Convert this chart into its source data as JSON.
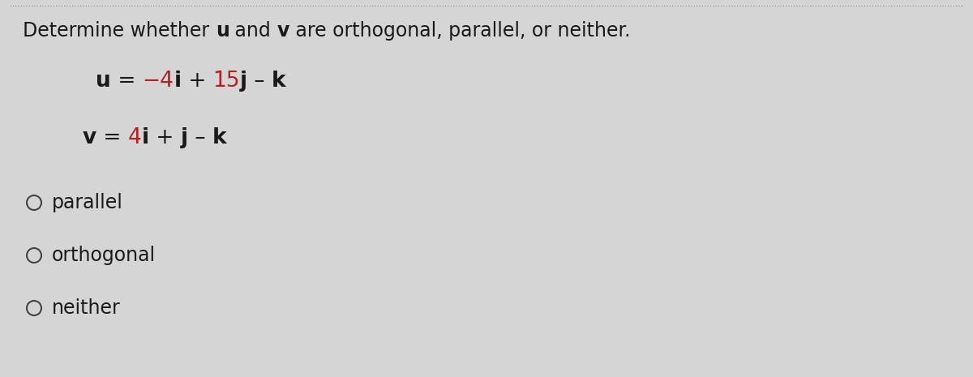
{
  "background_color": "#d5d5d5",
  "title_parts": [
    {
      "text": "Determine whether ",
      "bold": false,
      "red": false
    },
    {
      "text": "u",
      "bold": true,
      "red": false
    },
    {
      "text": " and ",
      "bold": false,
      "red": false
    },
    {
      "text": "v",
      "bold": true,
      "red": false
    },
    {
      "text": " are orthogonal, parallel, or neither.",
      "bold": false,
      "red": false
    }
  ],
  "eq_u_parts": [
    {
      "text": "u",
      "bold": true,
      "red": false
    },
    {
      "text": " = ",
      "bold": false,
      "red": false
    },
    {
      "text": "−4",
      "bold": false,
      "red": true
    },
    {
      "text": "i",
      "bold": true,
      "red": false
    },
    {
      "text": " + ",
      "bold": false,
      "red": false
    },
    {
      "text": "15",
      "bold": false,
      "red": true
    },
    {
      "text": "j",
      "bold": true,
      "red": false
    },
    {
      "text": " – ",
      "bold": false,
      "red": false
    },
    {
      "text": "k",
      "bold": true,
      "red": false
    }
  ],
  "eq_v_parts": [
    {
      "text": "v",
      "bold": true,
      "red": false
    },
    {
      "text": " = ",
      "bold": false,
      "red": false
    },
    {
      "text": "4",
      "bold": false,
      "red": true
    },
    {
      "text": "i",
      "bold": true,
      "red": false
    },
    {
      "text": " + ",
      "bold": false,
      "red": false
    },
    {
      "text": "j",
      "bold": true,
      "red": false
    },
    {
      "text": " – ",
      "bold": false,
      "red": false
    },
    {
      "text": "k",
      "bold": true,
      "red": false
    }
  ],
  "options": [
    "parallel",
    "orthogonal",
    "neither"
  ],
  "red_color": "#b22222",
  "black_color": "#1a1a1a",
  "circle_color": "#444444",
  "font_size_title": 17,
  "font_size_eq": 19,
  "font_size_options": 17,
  "figsize": [
    12.0,
    4.65
  ],
  "dpi": 100
}
